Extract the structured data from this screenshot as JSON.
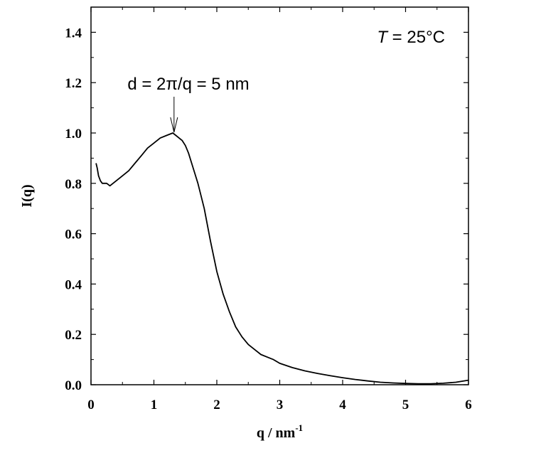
{
  "chart_data": {
    "type": "line",
    "xlabel": "q / nm",
    "xlabel_superscript": "-1",
    "ylabel": "I(q)",
    "xlim": [
      0,
      6
    ],
    "ylim": [
      0,
      1.5
    ],
    "grid": false,
    "x_ticks": [
      "0",
      "1",
      "2",
      "3",
      "4",
      "5",
      "6"
    ],
    "y_ticks": [
      "0.0",
      "0.2",
      "0.4",
      "0.6",
      "0.8",
      "1.0",
      "1.2",
      "1.4"
    ],
    "series": [
      {
        "x": [
          0.08,
          0.1,
          0.12,
          0.15,
          0.18,
          0.2,
          0.25,
          0.3,
          0.35,
          0.4,
          0.5,
          0.6,
          0.7,
          0.8,
          0.9,
          1.0,
          1.1,
          1.2,
          1.3,
          1.35,
          1.4,
          1.45,
          1.5,
          1.55,
          1.6,
          1.65,
          1.7,
          1.8,
          1.9,
          2.0,
          2.1,
          2.2,
          2.3,
          2.4,
          2.5,
          2.6,
          2.7,
          2.8,
          2.9,
          3.0,
          3.2,
          3.4,
          3.6,
          3.8,
          4.0,
          4.2,
          4.4,
          4.6,
          4.8,
          5.0,
          5.2,
          5.4,
          5.6,
          5.8,
          6.0
        ],
        "y": [
          0.88,
          0.86,
          0.83,
          0.81,
          0.8,
          0.8,
          0.8,
          0.79,
          0.8,
          0.81,
          0.83,
          0.85,
          0.88,
          0.91,
          0.94,
          0.96,
          0.98,
          0.99,
          1.0,
          0.99,
          0.98,
          0.97,
          0.95,
          0.92,
          0.88,
          0.84,
          0.8,
          0.7,
          0.57,
          0.45,
          0.36,
          0.29,
          0.23,
          0.19,
          0.16,
          0.14,
          0.12,
          0.11,
          0.1,
          0.085,
          0.068,
          0.055,
          0.045,
          0.036,
          0.028,
          0.021,
          0.015,
          0.01,
          0.007,
          0.005,
          0.004,
          0.004,
          0.006,
          0.01,
          0.018
        ]
      }
    ],
    "annotations": [
      {
        "text": "d = 2π/q = 5 nm",
        "arrow_to": [
          1.32,
          1.0
        ]
      }
    ],
    "temperature_label": {
      "symbol": "T",
      "rest": " = 25°C"
    }
  }
}
